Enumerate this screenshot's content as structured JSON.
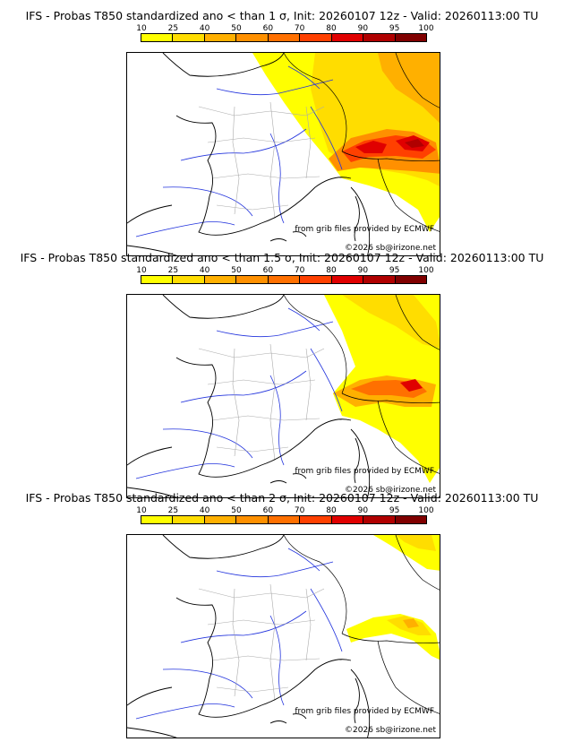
{
  "panels": [
    {
      "title": "IFS - Probas T850  standardized ano < than 1 σ, Init: 20260107 12z - Valid: 20260113:00 TU",
      "threshold_sigma": 1
    },
    {
      "title": "IFS - Probas T850  standardized ano < than 1.5 σ, Init: 20260107 12z - Valid: 20260113:00 TU",
      "threshold_sigma": 1.5
    },
    {
      "title": "IFS - Probas T850  standardized ano < than 2 σ, Init: 20260107 12z - Valid: 20260113:00 TU",
      "threshold_sigma": 2
    }
  ],
  "legend": {
    "labels": [
      "10",
      "25",
      "40",
      "50",
      "60",
      "70",
      "80",
      "90",
      "95",
      "100"
    ],
    "colors": [
      "#ffff00",
      "#ffdd00",
      "#ffb000",
      "#ff9000",
      "#ff7000",
      "#ff4000",
      "#e00000",
      "#b00000",
      "#800000"
    ]
  },
  "credits": {
    "source": "from grib files provided by ECMWF",
    "copyright": "©2026 sb@irizone.net"
  },
  "colors": {
    "coast": "#000000",
    "rivers": "#2233dd",
    "borders": "#aaaaaa"
  }
}
